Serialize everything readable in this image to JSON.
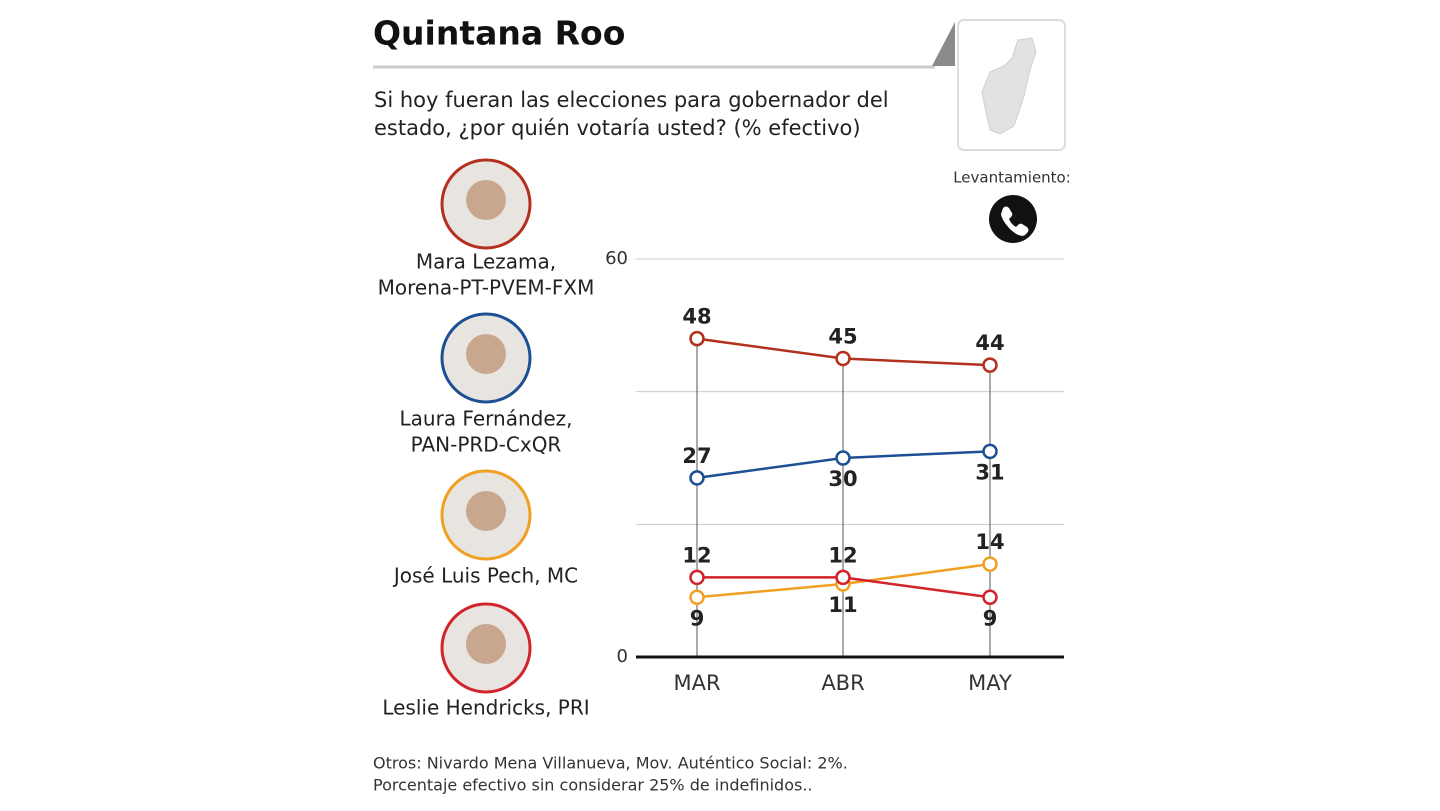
{
  "chart_data": {
    "type": "line",
    "title": "Quintana Roo",
    "subtitle": "Si hoy fueran las elecciones para gobernador del estado, ¿por quién votaría usted? (% efectivo)",
    "survey_label": "Levantamiento:",
    "categories": [
      "MAR",
      "ABR",
      "MAY"
    ],
    "series": [
      {
        "name": "Mara Lezama,",
        "party": "Morena-PT-PVEM-FXM",
        "color": "#b3301e",
        "values": [
          48,
          45,
          44
        ]
      },
      {
        "name": "Laura Fernández,",
        "party": "PAN-PRD-CxQR",
        "color": "#1c4f93",
        "values": [
          27,
          30,
          31
        ]
      },
      {
        "name": "José Luis Pech, MC",
        "color": "#f0a023",
        "values": [
          9,
          11,
          14
        ]
      },
      {
        "name": "Leslie Hendricks, PRI",
        "color": "#d2232a",
        "values": [
          12,
          12,
          9
        ]
      }
    ],
    "ylim": [
      0,
      60
    ],
    "yticks": [
      0,
      60
    ],
    "gridlines": [
      20,
      40,
      60
    ],
    "notes": [
      "Otros: Nivardo Mena Villanueva, Mov. Auténtico Social: 2%.",
      "Porcentaje efectivo sin considerar 25% de indefinidos.."
    ]
  }
}
